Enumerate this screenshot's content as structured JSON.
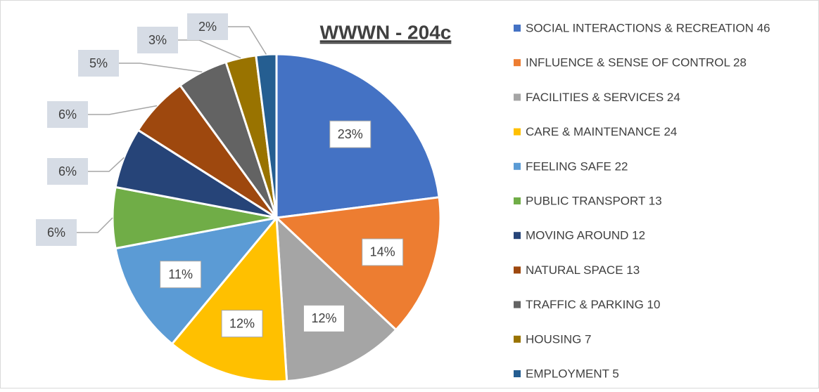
{
  "chart_data": {
    "type": "pie",
    "title": "WWWN -  204c",
    "categories": [
      "SOCIAL INTERACTIONS & RECREATION 46",
      "INFLUENCE & SENSE OF CONTROL 28",
      "FACILITIES & SERVICES 24",
      "CARE & MAINTENANCE 24",
      "FEELING SAFE 22",
      "PUBLIC TRANSPORT 13",
      "MOVING AROUND 12",
      "NATURAL SPACE 13",
      "TRAFFIC & PARKING 10",
      "HOUSING 7",
      "EMPLOYMENT 5"
    ],
    "values": [
      23,
      14,
      12,
      12,
      11,
      6,
      6,
      6,
      5,
      3,
      2
    ],
    "value_labels": [
      "23%",
      "14%",
      "12%",
      "12%",
      "11%",
      "6%",
      "6%",
      "6%",
      "5%",
      "3%",
      "2%"
    ],
    "colors": [
      "#4472c4",
      "#ed7d31",
      "#a5a5a5",
      "#ffc000",
      "#5b9bd5",
      "#70ad47",
      "#264478",
      "#9e480e",
      "#636363",
      "#997300",
      "#255e91"
    ],
    "legend": "right"
  }
}
